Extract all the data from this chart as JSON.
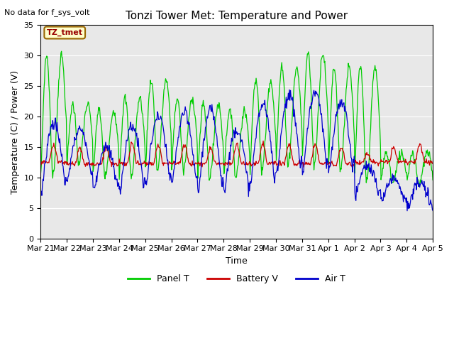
{
  "title": "Tonzi Tower Met: Temperature and Power",
  "ylabel": "Temperature (C) / Power (V)",
  "xlabel": "Time",
  "no_data_text": "No data for f_sys_volt",
  "tag_label": "TZ_tmet",
  "tag_color_bg": "#ffffcc",
  "tag_color_border": "#996600",
  "tag_color_text": "#990000",
  "ylim": [
    0,
    35
  ],
  "yticks": [
    0,
    5,
    10,
    15,
    20,
    25,
    30,
    35
  ],
  "bg_color": "#e8e8e8",
  "fig_color": "#ffffff",
  "grid_color": "#ffffff",
  "legend_entries": [
    "Panel T",
    "Battery V",
    "Air T"
  ],
  "legend_colors": [
    "#00cc00",
    "#cc0000",
    "#0000cc"
  ],
  "line_colors": [
    "#00cc00",
    "#cc0000",
    "#0000cc"
  ],
  "xtick_labels": [
    "Mar 21",
    "Mar 22",
    "Mar 23",
    "Mar 24",
    "Mar 25",
    "Mar 26",
    "Mar 27",
    "Mar 28",
    "Mar 29",
    "Mar 30",
    "Mar 31",
    "Apr 1",
    "Apr 2",
    "Apr 3",
    "Apr 4",
    "Apr 5"
  ],
  "title_fontsize": 11,
  "label_fontsize": 9,
  "tick_fontsize": 8,
  "legend_fontsize": 9,
  "no_data_fontsize": 8
}
